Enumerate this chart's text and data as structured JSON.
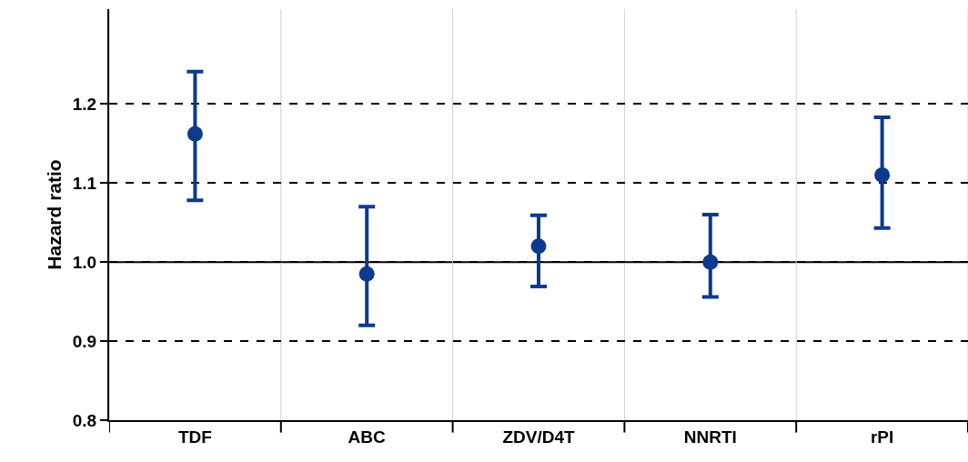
{
  "chart_data": {
    "type": "scatter",
    "ylabel": "Hazard ratio",
    "categories": [
      "TDF",
      "ABC",
      "ZDV/D4T",
      "NNRTI",
      "rPI"
    ],
    "values": [
      1.162,
      0.985,
      1.02,
      1.0,
      1.11
    ],
    "errors": [
      [
        1.078,
        1.241
      ],
      [
        0.92,
        1.07
      ],
      [
        0.969,
        1.059
      ],
      [
        0.956,
        1.06
      ],
      [
        1.043,
        1.183
      ]
    ],
    "color": "#0d3a8c",
    "marker": "circle",
    "ylim": [
      0.8,
      1.32
    ],
    "yticks": [
      {
        "value": 0.8,
        "label": "0.8"
      },
      {
        "value": 0.9,
        "label": "0.9"
      },
      {
        "value": 1,
        "label": "1.0"
      },
      {
        "value": 1.1,
        "label": "1.1"
      },
      {
        "value": 1.2,
        "label": "1.2"
      }
    ],
    "grid": true,
    "ref_lines": [
      {
        "axis": "y",
        "value": 1.0,
        "color": "#000000",
        "line_style": "solid"
      }
    ]
  }
}
